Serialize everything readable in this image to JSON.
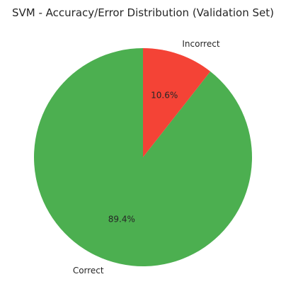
{
  "chart_data": {
    "type": "pie",
    "title": "SVM - Accuracy/Error Distribution (Validation Set)",
    "categories": [
      "Correct",
      "Incorrect"
    ],
    "values": [
      89.4,
      10.6
    ],
    "percent_labels": [
      "89.4%",
      "10.6%"
    ],
    "colors": [
      "#4caf50",
      "#f44336"
    ],
    "start_angle_deg": 90,
    "direction": "counterclockwise",
    "legend": "none"
  }
}
